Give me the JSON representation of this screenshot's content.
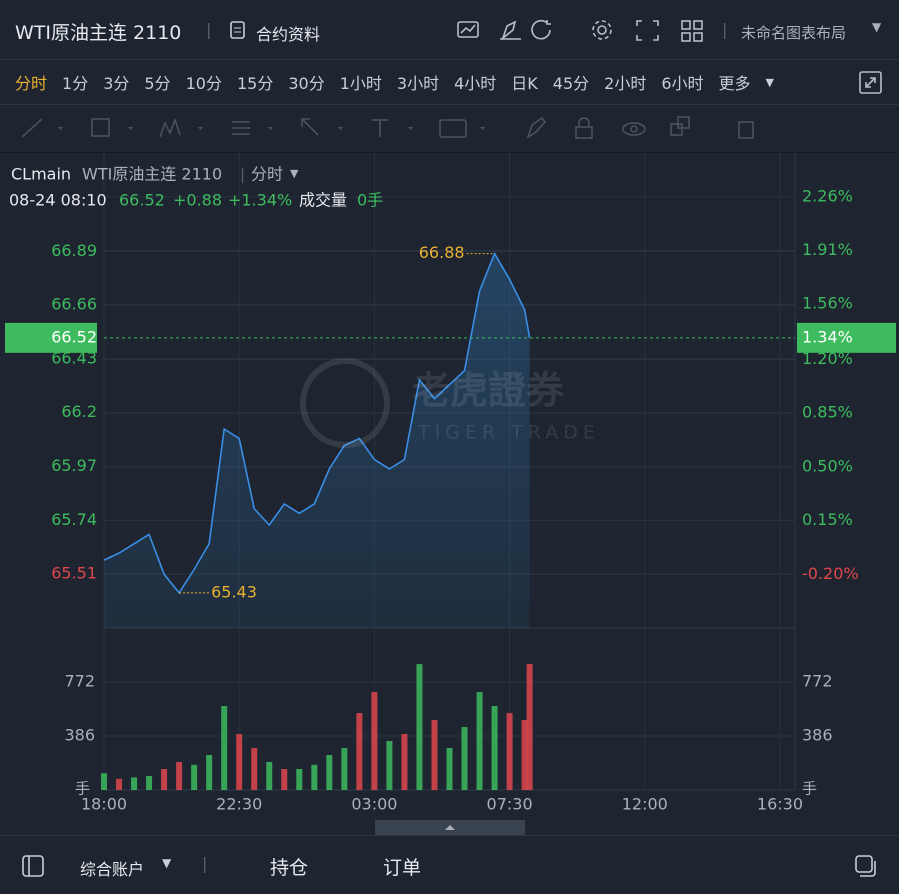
{
  "header": {
    "title": "WTI原油主连 2110",
    "contract_info": "合约资料",
    "layout_name": "未命名图表布局"
  },
  "periods": [
    "分时",
    "1分",
    "3分",
    "5分",
    "10分",
    "15分",
    "30分",
    "1小时",
    "3小时",
    "4小时",
    "日K",
    "45分",
    "2小时",
    "6小时",
    "更多"
  ],
  "legend": {
    "symbol": "CLmain",
    "name": "WTI原油主连 2110",
    "period": "分时"
  },
  "quote": {
    "time": "08-24 08:10",
    "price": "66.52",
    "change": "+0.88",
    "change_pct": "+1.34%",
    "volume_label": "成交量",
    "volume": "0手"
  },
  "watermark": {
    "brand": "老虎證券",
    "brand_en": "TIGER TRADE"
  },
  "chart_data": [
    {
      "type": "line",
      "x": [
        "18:00",
        "18:30",
        "19:00",
        "19:30",
        "20:00",
        "20:30",
        "21:00",
        "21:30",
        "22:00",
        "22:30",
        "23:00",
        "23:30",
        "00:00",
        "00:30",
        "01:00",
        "01:30",
        "02:00",
        "02:30",
        "03:00",
        "03:30",
        "04:00",
        "04:30",
        "05:00",
        "05:30",
        "06:00",
        "06:30",
        "07:00",
        "07:30",
        "08:00",
        "08:10"
      ],
      "series": [
        {
          "color": "#3a8ee6",
          "values": [
            65.57,
            65.6,
            65.64,
            65.68,
            65.51,
            65.43,
            65.53,
            65.64,
            66.13,
            66.09,
            65.79,
            65.72,
            65.81,
            65.77,
            65.81,
            65.96,
            66.06,
            66.09,
            66.0,
            65.96,
            66.0,
            66.34,
            66.26,
            66.32,
            66.38,
            66.72,
            66.88,
            66.77,
            66.64,
            66.52
          ]
        }
      ],
      "xlim": [
        "18:00",
        "17:00"
      ],
      "ylim": [
        65.28,
        67.28
      ],
      "yticks": [
        65.51,
        65.74,
        65.97,
        66.2,
        66.43,
        66.66,
        66.89
      ],
      "y2lim": [
        -0.55,
        2.5
      ],
      "y2ticks": [
        {
          "value": -0.2,
          "label": "-0.20%"
        },
        {
          "value": 0.15,
          "label": "0.15%"
        },
        {
          "value": 0.5,
          "label": "0.50%"
        },
        {
          "value": 0.85,
          "label": "0.85%"
        },
        {
          "value": 1.2,
          "label": "1.20%"
        },
        {
          "value": 1.56,
          "label": "1.56%"
        },
        {
          "value": 1.91,
          "label": "1.91%"
        },
        {
          "value": 2.26,
          "label": "2.26%"
        }
      ],
      "last": {
        "value": 66.52,
        "pct": {
          "value": 1.34,
          "label": "1.34%"
        }
      },
      "annotations": [
        {
          "x": "07:00",
          "y": 66.88
        },
        {
          "x": "20:30",
          "y": 65.43
        }
      ],
      "grid": true
    },
    {
      "type": "bar",
      "x": [
        "18:00",
        "18:30",
        "19:00",
        "19:30",
        "20:00",
        "20:30",
        "21:00",
        "21:30",
        "22:00",
        "22:30",
        "23:00",
        "23:30",
        "00:00",
        "00:30",
        "01:00",
        "01:30",
        "02:00",
        "02:30",
        "03:00",
        "03:30",
        "04:00",
        "04:30",
        "05:00",
        "05:30",
        "06:00",
        "06:30",
        "07:00",
        "07:30",
        "08:00",
        "08:10"
      ],
      "values": [
        120,
        80,
        90,
        100,
        150,
        200,
        180,
        250,
        600,
        400,
        300,
        200,
        150,
        150,
        180,
        250,
        300,
        550,
        700,
        350,
        400,
        900,
        500,
        300,
        450,
        700,
        600,
        550,
        500,
        900
      ],
      "colors": [
        "#3dbb5e",
        "#e0474c",
        "#3dbb5e",
        "#3dbb5e",
        "#e0474c",
        "#e0474c",
        "#3dbb5e",
        "#3dbb5e",
        "#3dbb5e",
        "#e0474c",
        "#e0474c",
        "#3dbb5e",
        "#e0474c",
        "#3dbb5e",
        "#3dbb5e",
        "#3dbb5e",
        "#3dbb5e",
        "#e0474c",
        "#e0474c",
        "#3dbb5e",
        "#e0474c",
        "#3dbb5e",
        "#e0474c",
        "#3dbb5e",
        "#3dbb5e",
        "#3dbb5e",
        "#3dbb5e",
        "#e0474c",
        "#e0474c",
        "#e0474c"
      ],
      "xlim": [
        "18:00",
        "17:00"
      ],
      "xticks": [
        "18:00",
        "22:30",
        "03:00",
        "07:30",
        "12:00",
        "16:30"
      ],
      "ylim": [
        0,
        1158
      ],
      "yticks": [
        386,
        772
      ],
      "y_label": "手",
      "grid": true
    }
  ],
  "footer": {
    "account": "综合账户",
    "positions": "持仓",
    "orders": "订单"
  }
}
